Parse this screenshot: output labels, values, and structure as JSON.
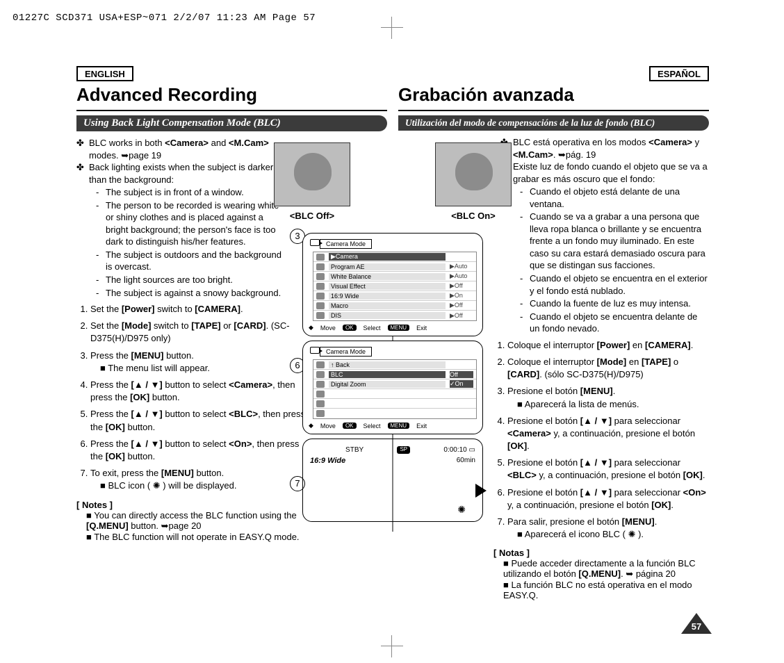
{
  "header_strip": "01227C SCD371 USA+ESP~071  2/2/07 11:23 AM  Page 57",
  "en": {
    "lang": "ENGLISH",
    "title": "Advanced Recording",
    "subhead": "Using Back Light Compensation Mode (BLC)",
    "bullets_plus": [
      "BLC works in both <Camera> and <M.Cam> modes. ➥page 19",
      "Back lighting exists when the subject is darker than the background:"
    ],
    "bullets_dash": [
      "The subject is in front of a window.",
      "The person to be recorded is wearing white or shiny clothes and is placed against a bright background; the person's face is too dark to distinguish his/her features.",
      "The subject is outdoors and the background is overcast.",
      "The light sources are too bright.",
      "The subject is against a snowy background."
    ],
    "steps": [
      "Set the [Power] switch to [CAMERA].",
      "Set the [Mode] switch to [TAPE] or [CARD]. (SC-D375(H)/D975 only)",
      "Press the [MENU] button.",
      "Press the [▲ / ▼] button to select <Camera>, then press the [OK] button.",
      "Press the [▲ / ▼] button to select <BLC>, then press the [OK] button.",
      "Press the [▲ / ▼] button to select <On>, then press the [OK] button.",
      "To exit, press the [MENU] button."
    ],
    "step3_sub": "The menu list will appear.",
    "step7_sub": "BLC icon ( ✺ ) will be displayed.",
    "notes_h": "[ Notes ]",
    "notes": [
      "You can directly access the BLC function using the [Q.MENU] button. ➥page 20",
      "The BLC function will not operate in EASY.Q mode."
    ]
  },
  "es": {
    "lang": "ESPAÑOL",
    "title": "Grabación avanzada",
    "subhead": "Utilización del modo de compensacións de la luz de fondo (BLC)",
    "bullets_plus": [
      "BLC está operativa en los modos <Camera> y <M.Cam>. ➥pág. 19",
      "Existe luz de fondo cuando el objeto que se va a grabar es más oscuro que el fondo:"
    ],
    "bullets_dash": [
      "Cuando el objeto está delante de una ventana.",
      "Cuando se va a grabar a una persona que lleva ropa blanca o brillante y se encuentra frente a un fondo muy iluminado. En este caso su cara estará demasiado oscura para que se distingan sus facciones.",
      "Cuando el objeto se encuentra en el exterior y el fondo está nublado.",
      "Cuando la fuente de luz es muy intensa.",
      "Cuando el objeto se encuentra delante de un fondo nevado."
    ],
    "steps": [
      "Coloque el interruptor [Power] en [CAMERA].",
      "Coloque el interruptor [Mode] en [TAPE] o [CARD]. (sólo SC-D375(H)/D975)",
      "Presione el botón [MENU].",
      "Presione el botón [▲ / ▼] para seleccionar <Camera> y, a continuación, presione el botón [OK].",
      "Presione el botón [▲ / ▼] para seleccionar <BLC> y, a continuación, presione el botón [OK].",
      "Presione el botón [▲ / ▼] para seleccionar <On> y, a continuación, presione el botón [OK].",
      "Para salir, presione el botón [MENU]."
    ],
    "step3_sub": "Aparecerá la lista de menús.",
    "step7_sub": "Aparecerá el icono BLC ( ✺ ).",
    "notes_h": "[ Notas ]",
    "notes": [
      "Puede acceder directamente a la función BLC utilizando el botón [Q.MENU]. ➥ página 20",
      "La función BLC no está operativa en el modo EASY.Q."
    ]
  },
  "thumbs": {
    "off": "<BLC Off>",
    "on": "<BLC On>"
  },
  "osd3": {
    "title": "Camera Mode",
    "header": "▶Camera",
    "rows": [
      {
        "lbl": "Program AE",
        "val": "▶Auto"
      },
      {
        "lbl": "White Balance",
        "val": "▶Auto"
      },
      {
        "lbl": "Visual Effect",
        "val": "▶Off"
      },
      {
        "lbl": "16:9 Wide",
        "val": "▶On"
      },
      {
        "lbl": "Macro",
        "val": "▶Off"
      },
      {
        "lbl": "DIS",
        "val": "▶Off"
      }
    ],
    "foot_move": "Move",
    "foot_select": "Select",
    "foot_exit": "Exit",
    "ok": "OK",
    "menu": "MENU"
  },
  "osd6": {
    "title": "Camera Mode",
    "back": "↑ Back",
    "rows": [
      {
        "lbl": "BLC",
        "val": "Off"
      },
      {
        "lbl": "Digital Zoom",
        "val": "✓On"
      }
    ],
    "foot_move": "Move",
    "foot_select": "Select",
    "foot_exit": "Exit",
    "ok": "OK",
    "menu": "MENU"
  },
  "stby": {
    "status": "STBY",
    "sp": "SP",
    "time": "0:00:10",
    "tape": "▭",
    "min": "60min",
    "wide": "16:9 Wide"
  },
  "badges": {
    "b3": "3",
    "b6": "6",
    "b7": "7"
  },
  "page_number": "57"
}
